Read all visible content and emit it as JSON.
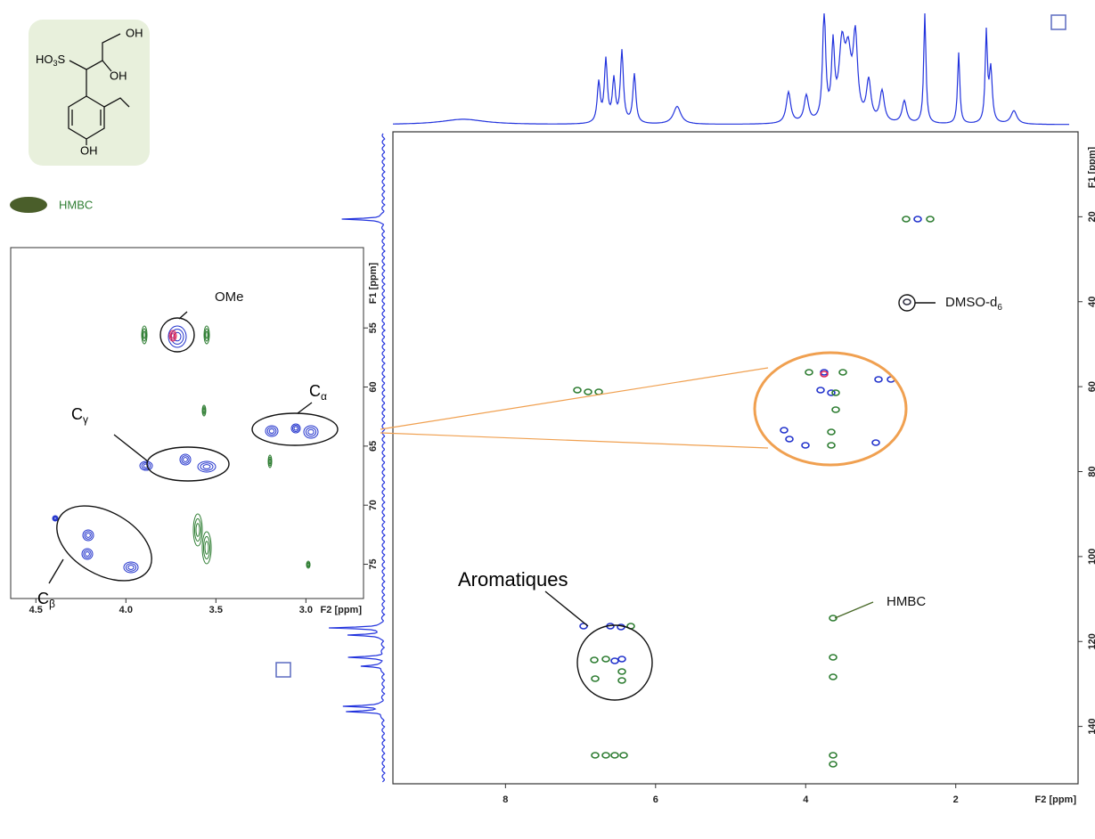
{
  "structure": {
    "labels": [
      "OH",
      "OH",
      "OH"
    ],
    "sulfonate": {
      "main": "HO",
      "sub": "3",
      "after": "S"
    }
  },
  "legend": {
    "label": "HMBC"
  },
  "inset": {
    "xlim": [
      4.64,
      2.68
    ],
    "ylim": [
      48.2,
      77.9
    ],
    "xticks": [
      4.5,
      {
        "value": 4,
        "label": "4.0"
      },
      3.5,
      {
        "value": 3,
        "label": "3.0"
      }
    ],
    "yticks": [
      55,
      60,
      65,
      70,
      75
    ],
    "x_label": "F2 [ppm]",
    "y_label": "F1 [ppm]",
    "annotations": [
      {
        "main": "OMe"
      },
      {
        "main": "C",
        "sub": "α"
      },
      {
        "main": "C",
        "sub": "γ"
      },
      {
        "main": "C",
        "sub": "β"
      }
    ]
  },
  "main": {
    "xlim": [
      9.5,
      0.37
    ],
    "ylim": [
      0,
      153.5
    ],
    "xticks": [
      8,
      6,
      4,
      2
    ],
    "yticks": [
      20,
      40,
      60,
      80,
      100,
      120,
      140
    ],
    "x_label": "F2 [ppm]",
    "y_label": "F1 [ppm]",
    "annotations": [
      {
        "main": "Aromatiques"
      },
      {
        "main": "HMBC"
      },
      {
        "main": "DMSO-d",
        "sub": "6"
      }
    ]
  }
}
